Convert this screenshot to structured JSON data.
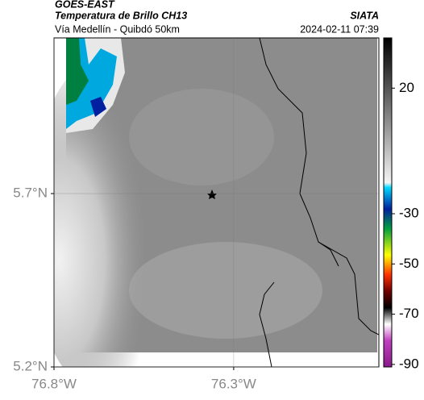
{
  "header": {
    "source": "GOES-EAST",
    "title": "Temperatura de Brillo CH13",
    "route": "Vía Medellín - Quibdó 50km",
    "agency": "SIATA",
    "timestamp": "2024-02-11 07:39"
  },
  "map": {
    "xlim": [
      -76.8,
      -75.896
    ],
    "ylim": [
      5.2,
      6.149
    ],
    "xticks": [
      {
        "value": -76.8,
        "label": "76.8°W"
      },
      {
        "value": -76.3,
        "label": "76.3°W"
      }
    ],
    "yticks": [
      {
        "value": 5.7,
        "label": "5.7°N"
      },
      {
        "value": 5.2,
        "label": "5.2°N"
      }
    ],
    "grid": true
  },
  "colorbar": {
    "lim": [
      -91,
      40
    ],
    "ticks": [
      20,
      -30,
      -50,
      -70,
      -90
    ]
  }
}
